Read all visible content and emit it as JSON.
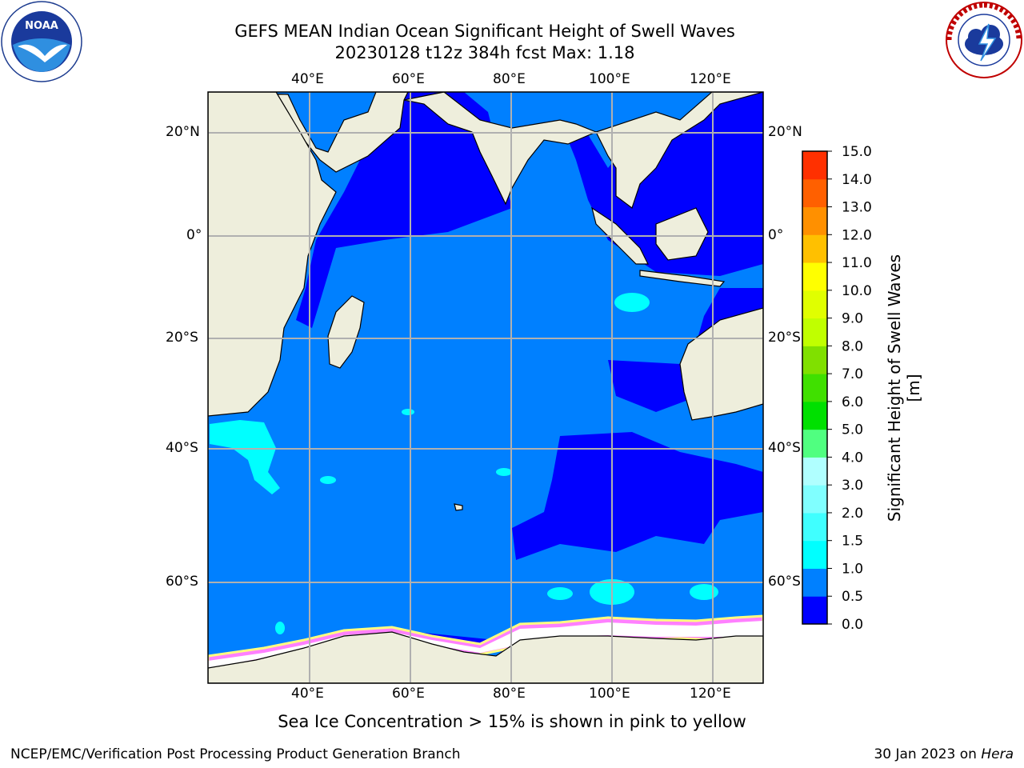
{
  "title": {
    "line1": "GEFS MEAN Indian Ocean Significant Height of Swell Waves",
    "line2": "20230128 t12z 384h fcst   Max: 1.18"
  },
  "map": {
    "lon_range": [
      20,
      130
    ],
    "lat_range": [
      -75,
      27
    ],
    "lon_ticks": [
      "40°E",
      "60°E",
      "80°E",
      "100°E",
      "120°E"
    ],
    "lat_ticks": [
      "20°N",
      "0°",
      "20°S",
      "40°S",
      "60°S"
    ],
    "grid": true
  },
  "colorbar": {
    "label": "Significant Height of Swell Waves [m]",
    "ticks": [
      "0.0",
      "0.5",
      "1.0",
      "1.5",
      "2.0",
      "3.0",
      "4.0",
      "5.0",
      "6.0",
      "7.0",
      "8.0",
      "9.0",
      "10.0",
      "11.0",
      "12.0",
      "13.0",
      "14.0",
      "15.0"
    ],
    "colors": [
      "#0000ff",
      "#0080ff",
      "#00ffff",
      "#40ffff",
      "#80ffff",
      "#b0ffff",
      "#50ff80",
      "#00e000",
      "#40e000",
      "#80e000",
      "#c0ff00",
      "#e0ff00",
      "#ffff00",
      "#ffc000",
      "#ff9000",
      "#ff6000",
      "#ff3000",
      "#ff0000"
    ]
  },
  "caption": "Sea Ice Concentration > 15% is shown in pink to yellow",
  "footer": {
    "left": "NCEP/EMC/Verification Post Processing Product Generation Branch",
    "right_date": "30 Jan 2023 on ",
    "right_machine": "Hera"
  },
  "logos": {
    "left_text": "NOAA",
    "right_text": "NATIONAL WEATHER SERVICE"
  }
}
